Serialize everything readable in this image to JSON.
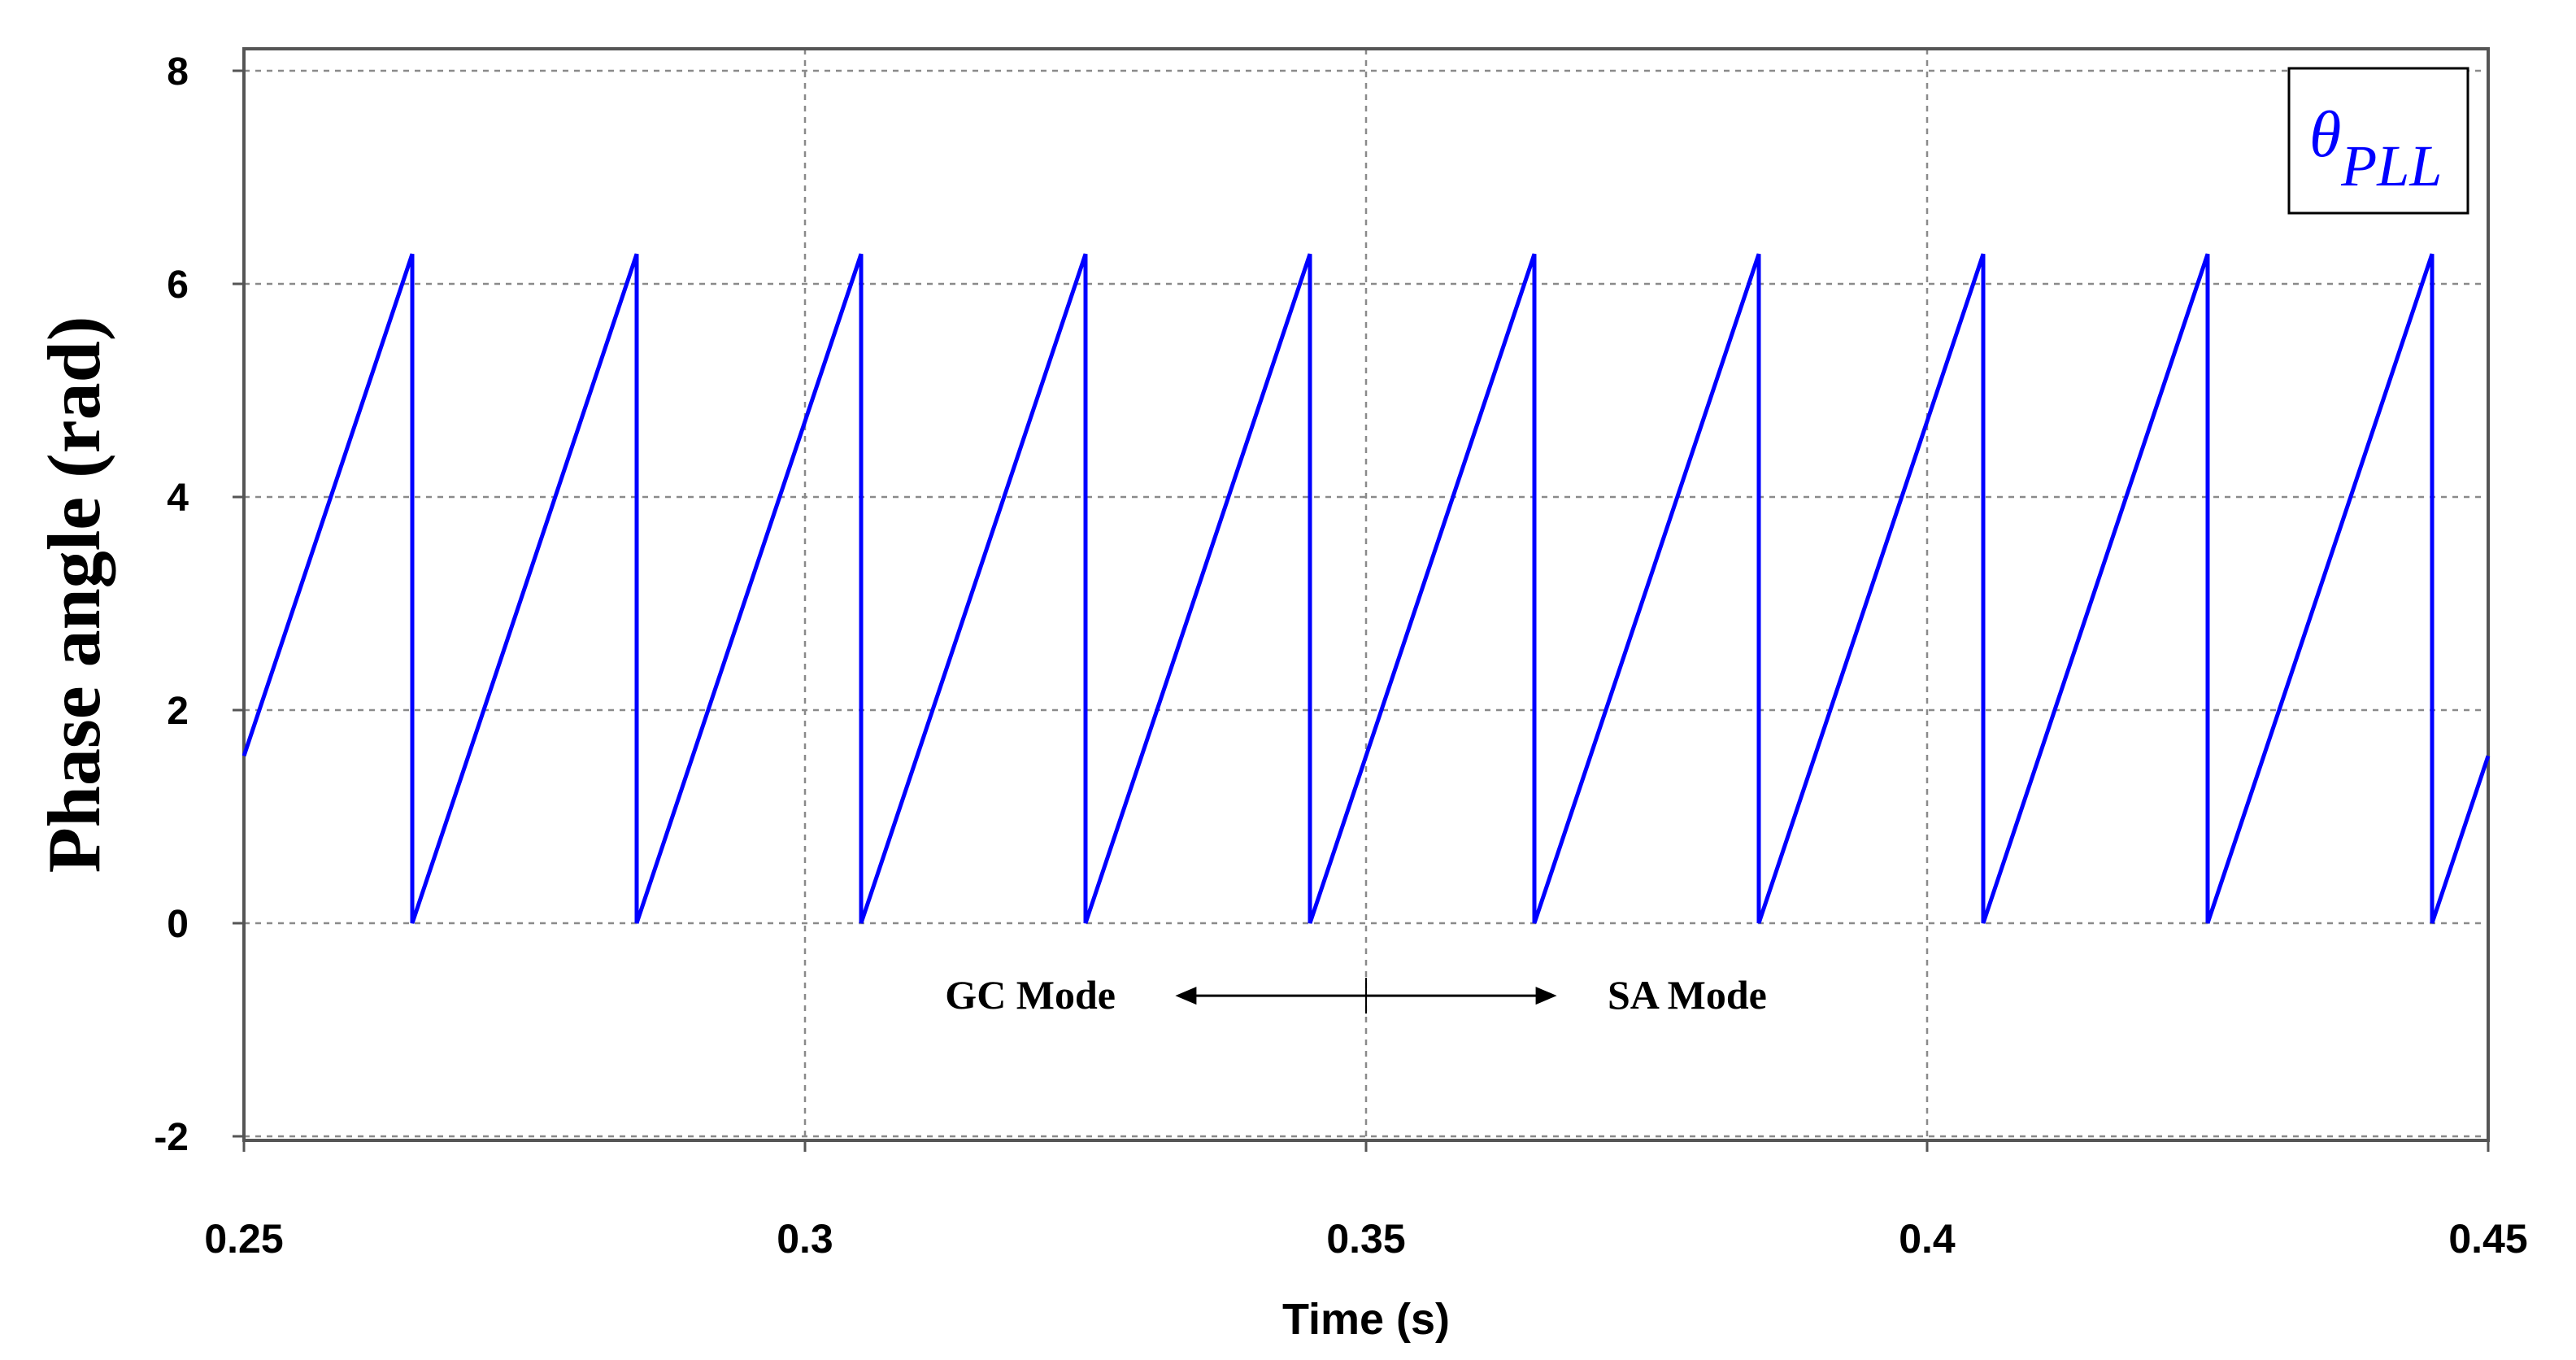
{
  "chart_data": {
    "type": "line",
    "title": "",
    "xlabel": "Time (s)",
    "ylabel": "Phase angle (rad)",
    "xlim": [
      0.25,
      0.45
    ],
    "ylim": [
      -2,
      8
    ],
    "x_ticks": [
      0.25,
      0.3,
      0.35,
      0.4,
      0.45
    ],
    "x_tick_labels": [
      "0.25",
      "0.3",
      "0.35",
      "0.4",
      "0.45"
    ],
    "y_ticks": [
      -2,
      0,
      2,
      4,
      6,
      8
    ],
    "y_tick_labels": [
      "-2",
      "0",
      "2",
      "4",
      "6",
      "8"
    ],
    "grid": true,
    "legend": {
      "symbol": "θ",
      "subscript": "PLL",
      "position": "top-right"
    },
    "series": [
      {
        "name": "θPLL",
        "color": "#0000ff",
        "x": [
          0.25,
          0.265,
          0.265,
          0.285,
          0.285,
          0.305,
          0.305,
          0.325,
          0.325,
          0.345,
          0.345,
          0.365,
          0.365,
          0.385,
          0.385,
          0.405,
          0.405,
          0.425,
          0.425,
          0.445,
          0.445,
          0.45
        ],
        "y": [
          1.57,
          6.28,
          0,
          6.28,
          0,
          6.28,
          0,
          6.28,
          0,
          6.28,
          0,
          6.28,
          0,
          6.28,
          0,
          6.28,
          0,
          6.28,
          0,
          6.28,
          0,
          1.57
        ]
      }
    ],
    "annotations": {
      "left_label": "GC Mode",
      "right_label": "SA Mode",
      "transition_time": 0.35,
      "arrow_start": 0.333,
      "arrow_end": 0.367,
      "y": -0.68
    }
  }
}
